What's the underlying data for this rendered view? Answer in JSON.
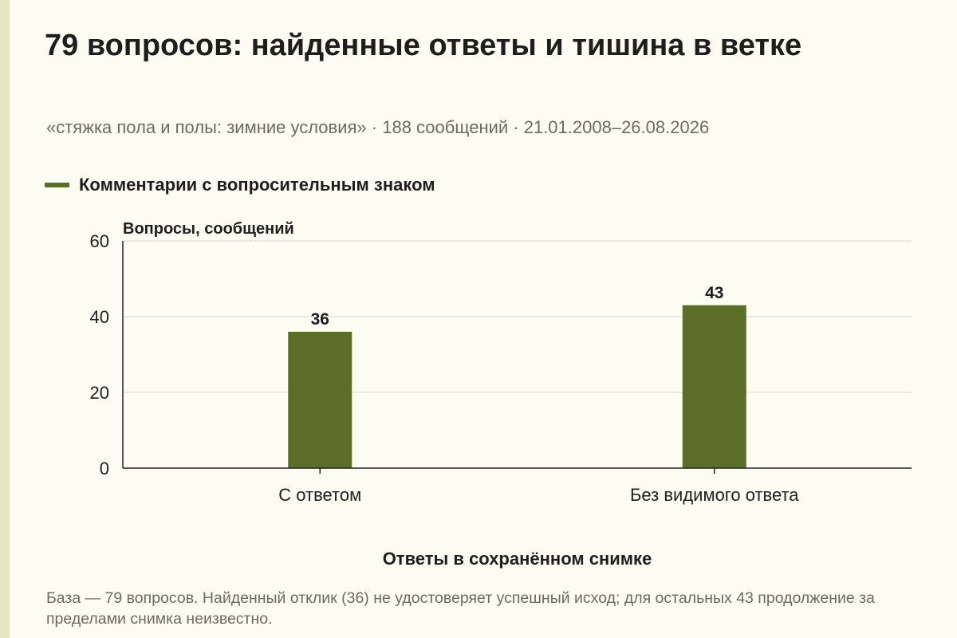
{
  "header": {
    "title": "79 вопросов: найденные ответы и тишина в ветке",
    "subtitle": "«стяжка пола и полы: зимние условия» · 188 сообщений · 21.01.2008–26.08.2026"
  },
  "colors": {
    "bar": "#5a6e28",
    "background": "#fdfcf3",
    "stripe": "#e3e8c2",
    "grid": "#d6d6d6",
    "axis": "#222222"
  },
  "chart_data": {
    "type": "bar",
    "categories": [
      "С ответом",
      "Без видимого ответа"
    ],
    "series": [
      {
        "name": "Комментарии с вопросительным знаком",
        "values": [
          36,
          43
        ]
      }
    ],
    "value_labels": [
      "36",
      "43"
    ],
    "ylabel": "Вопросы, сообщений",
    "xlabel": "Ответы в сохранённом снимке",
    "ylim": [
      0,
      60
    ],
    "yticks": [
      0,
      20,
      40,
      60
    ],
    "ytick_labels": [
      "0",
      "20",
      "40",
      "60"
    ],
    "grid": true,
    "legend_position": "top-left"
  },
  "footnote": "База — 79 вопросов. Найденный отклик (36) не удостоверяет успешный исход; для остальных 43 продолжение за пределами снимка неизвестно."
}
